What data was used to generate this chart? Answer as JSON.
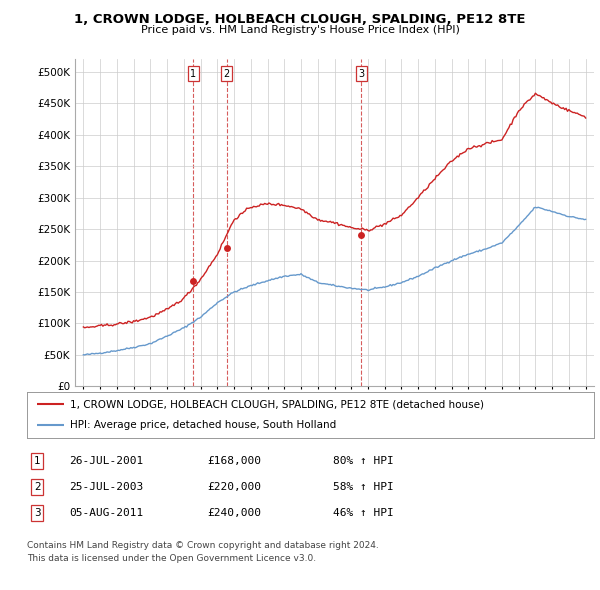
{
  "title": "1, CROWN LODGE, HOLBEACH CLOUGH, SPALDING, PE12 8TE",
  "subtitle": "Price paid vs. HM Land Registry's House Price Index (HPI)",
  "legend_line1": "1, CROWN LODGE, HOLBEACH CLOUGH, SPALDING, PE12 8TE (detached house)",
  "legend_line2": "HPI: Average price, detached house, South Holland",
  "table": [
    {
      "num": "1",
      "date": "26-JUL-2001",
      "price": "£168,000",
      "hpi": "80% ↑ HPI"
    },
    {
      "num": "2",
      "date": "25-JUL-2003",
      "price": "£220,000",
      "hpi": "58% ↑ HPI"
    },
    {
      "num": "3",
      "date": "05-AUG-2011",
      "price": "£240,000",
      "hpi": "46% ↑ HPI"
    }
  ],
  "footnote1": "Contains HM Land Registry data © Crown copyright and database right 2024.",
  "footnote2": "This data is licensed under the Open Government Licence v3.0.",
  "hpi_color": "#6699cc",
  "price_color": "#cc2222",
  "vline_color": "#cc3333",
  "grid_color": "#cccccc",
  "bg_color": "#ffffff",
  "ylim": [
    0,
    520000
  ],
  "yticks": [
    0,
    50000,
    100000,
    150000,
    200000,
    250000,
    300000,
    350000,
    400000,
    450000,
    500000
  ],
  "xlim_low": 1994.5,
  "xlim_high": 2025.5,
  "sale1_year": 2001.56,
  "sale1_price": 168000,
  "sale2_year": 2003.56,
  "sale2_price": 220000,
  "sale3_year": 2011.59,
  "sale3_price": 240000,
  "hpi_base": [
    50000,
    53000,
    57000,
    62000,
    68000,
    80000,
    93000,
    110000,
    133000,
    150000,
    160000,
    168000,
    175000,
    178000,
    165000,
    160000,
    156000,
    153000,
    158000,
    165000,
    175000,
    188000,
    200000,
    210000,
    218000,
    228000,
    255000,
    285000,
    278000,
    270000,
    265000
  ],
  "price_base": [
    93000,
    96000,
    99000,
    103000,
    110000,
    122000,
    140000,
    170000,
    210000,
    265000,
    285000,
    290000,
    288000,
    282000,
    265000,
    260000,
    252000,
    248000,
    258000,
    272000,
    300000,
    330000,
    358000,
    378000,
    385000,
    392000,
    438000,
    465000,
    450000,
    438000,
    428000
  ]
}
